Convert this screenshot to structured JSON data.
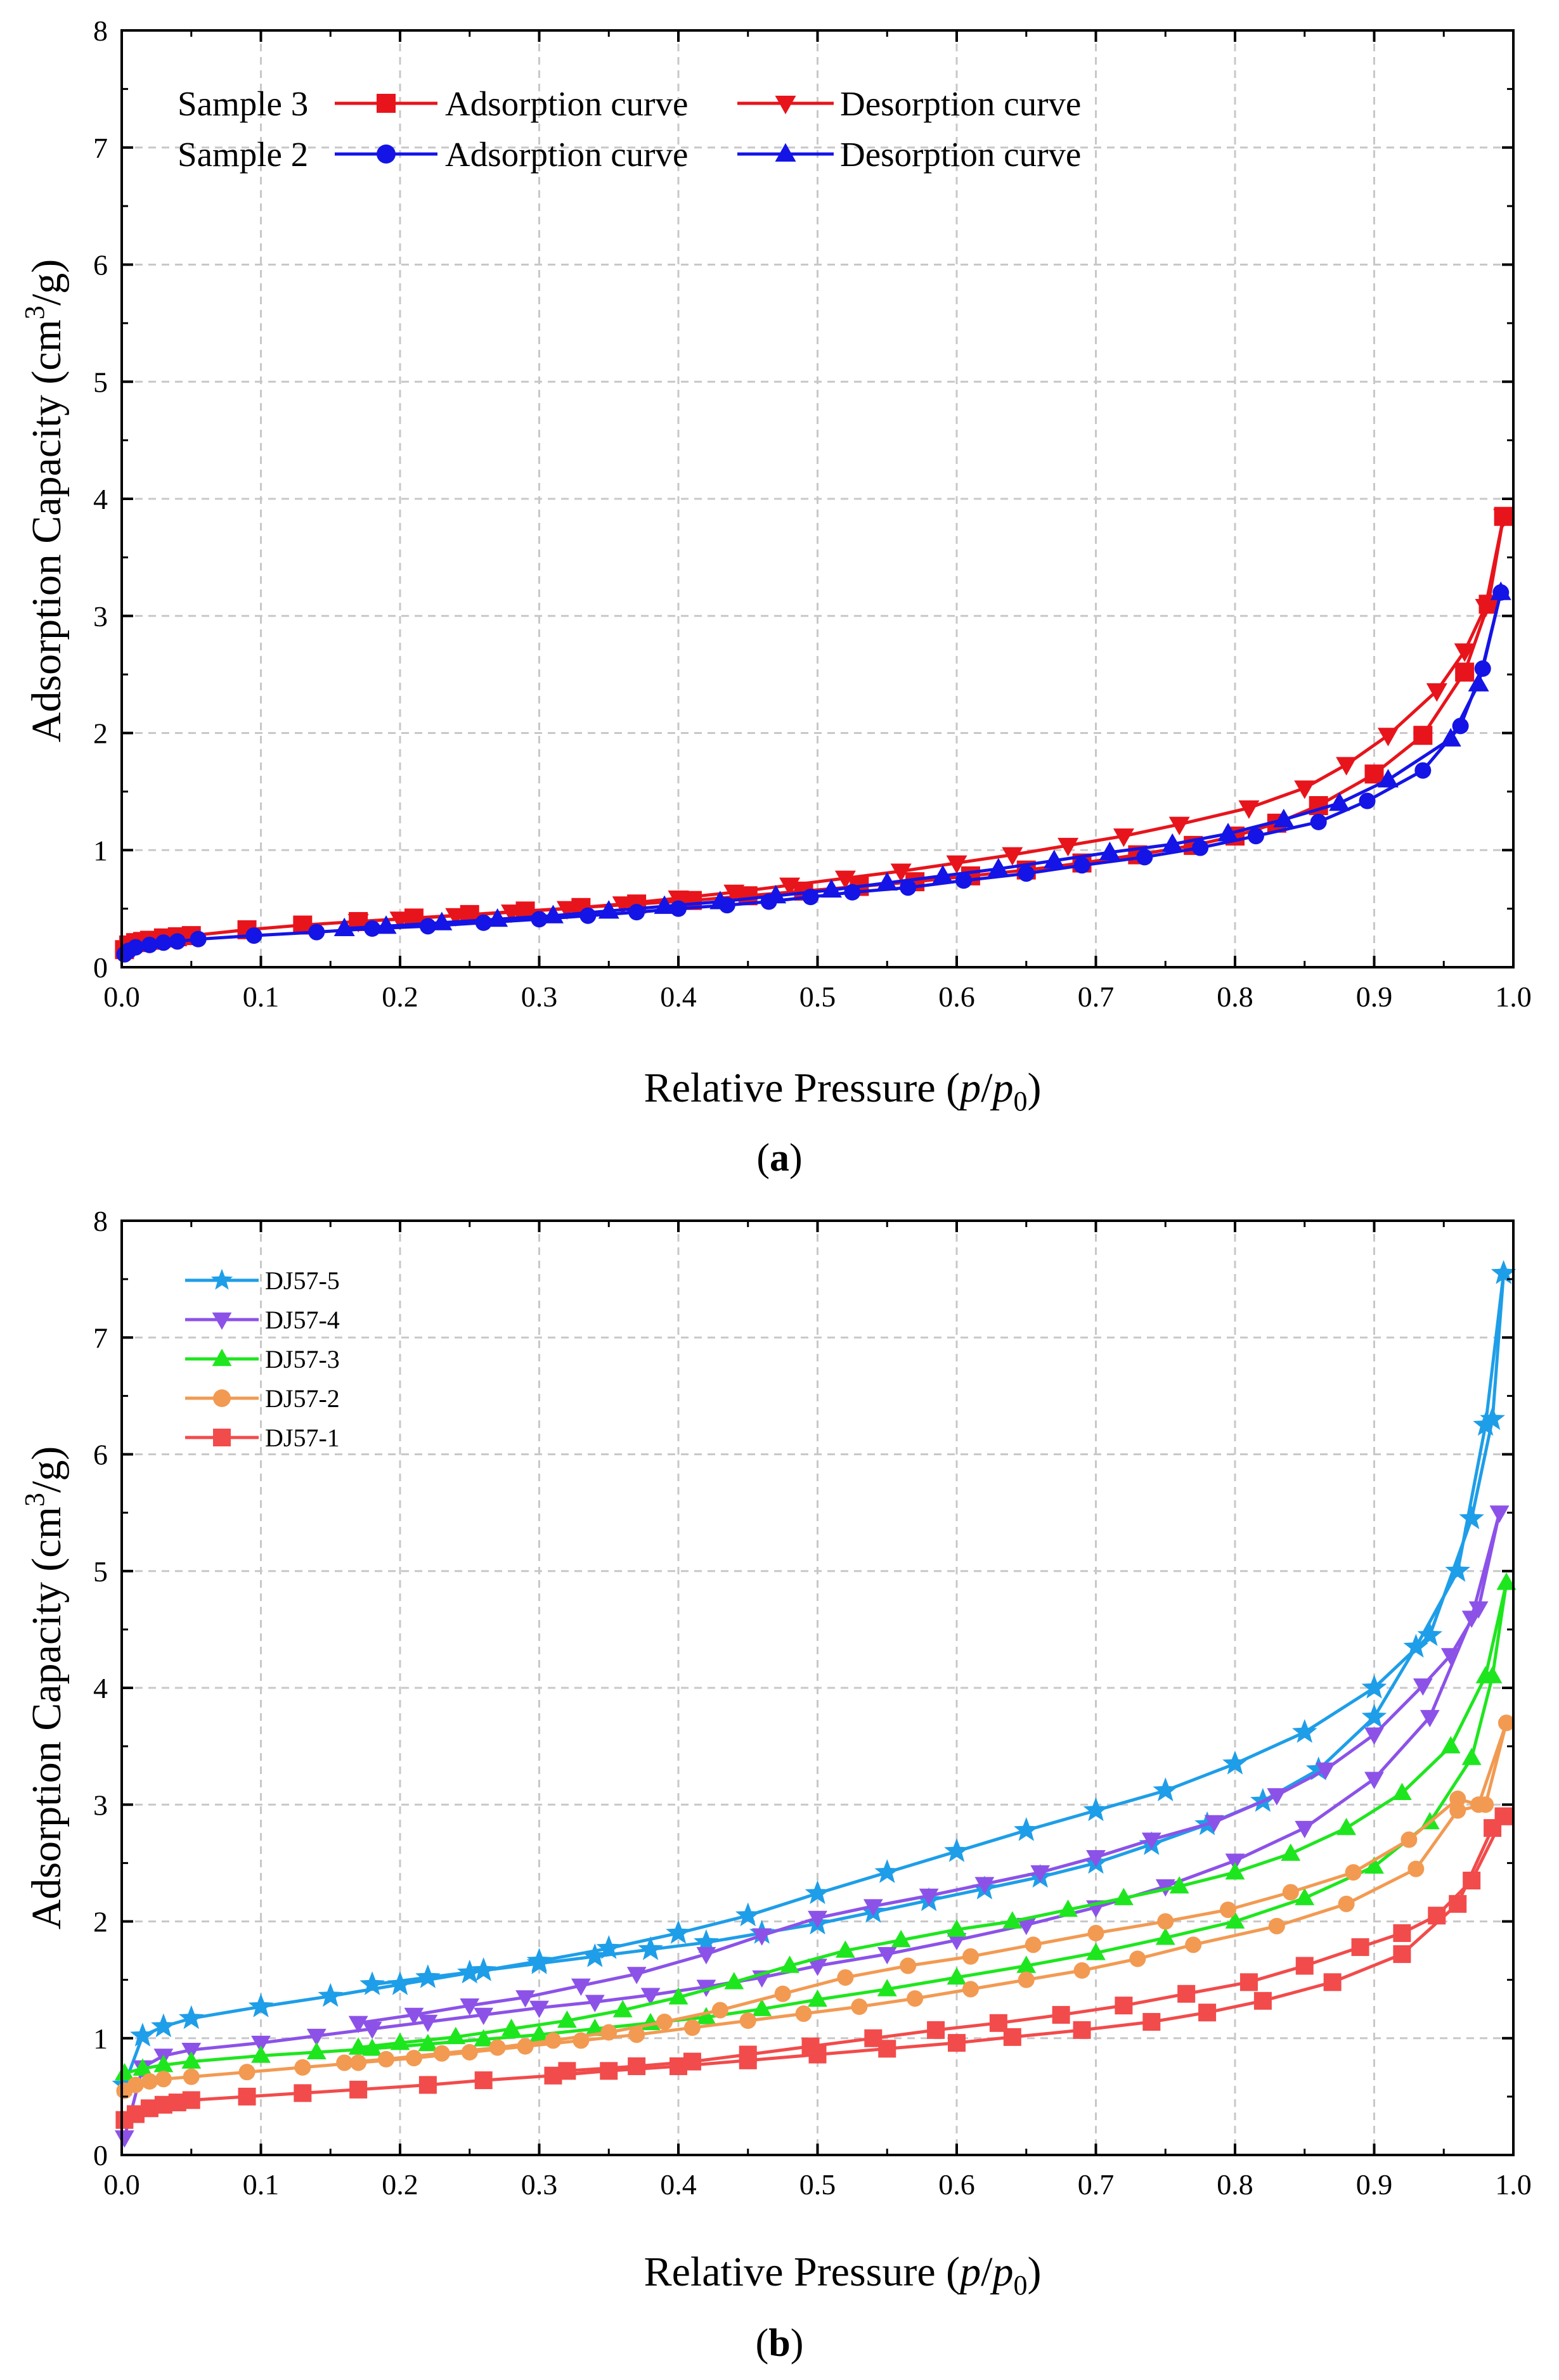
{
  "chart_data": [
    {
      "type": "line",
      "caption": "a",
      "xlabel_main": "Relative Pressure (",
      "xlabel_italic_1": "p",
      "xlabel_slash": "/",
      "xlabel_italic_2": "p",
      "xlabel_sub": "0",
      "xlabel_close": ")",
      "ylabel_main": "Adsorption Capacity (cm",
      "ylabel_sup": "3",
      "ylabel_close": "/g)",
      "xlim": [
        0,
        1
      ],
      "ylim": [
        0,
        8
      ],
      "xticks": [
        "0.0",
        "0.1",
        "0.2",
        "0.3",
        "0.4",
        "0.5",
        "0.6",
        "0.7",
        "0.8",
        "0.9",
        "1.0"
      ],
      "yticks": [
        "0",
        "1",
        "2",
        "3",
        "4",
        "5",
        "6",
        "7",
        "8"
      ],
      "grid": true,
      "legend_position": "top-left",
      "legend_groups": [
        {
          "sample": "Sample 3",
          "adsorption_label": "Adsorption curve",
          "desorption_label": "Desorption curve"
        },
        {
          "sample": "Sample 2",
          "adsorption_label": "Adsorption curve",
          "desorption_label": "Desorption curve"
        }
      ],
      "series": [
        {
          "name": "Sample 3 Adsorption curve",
          "color": "#e8141b",
          "marker": "square",
          "x": [
            0.002,
            0.005,
            0.01,
            0.015,
            0.02,
            0.03,
            0.04,
            0.05,
            0.09,
            0.13,
            0.17,
            0.21,
            0.25,
            0.29,
            0.33,
            0.37,
            0.41,
            0.45,
            0.49,
            0.53,
            0.57,
            0.61,
            0.65,
            0.69,
            0.73,
            0.77,
            0.8,
            0.83,
            0.86,
            0.9,
            0.935,
            0.965,
            0.982,
            0.993
          ],
          "y": [
            0.15,
            0.19,
            0.21,
            0.22,
            0.23,
            0.25,
            0.26,
            0.27,
            0.32,
            0.36,
            0.39,
            0.42,
            0.45,
            0.48,
            0.51,
            0.54,
            0.57,
            0.61,
            0.65,
            0.69,
            0.73,
            0.78,
            0.83,
            0.89,
            0.96,
            1.04,
            1.12,
            1.23,
            1.38,
            1.65,
            1.98,
            2.52,
            3.1,
            3.85
          ]
        },
        {
          "name": "Sample 3 Desorption curve",
          "color": "#e8141b",
          "marker": "triangle-down",
          "x": [
            0.993,
            0.98,
            0.965,
            0.945,
            0.91,
            0.88,
            0.85,
            0.81,
            0.76,
            0.72,
            0.68,
            0.64,
            0.6,
            0.56,
            0.52,
            0.48,
            0.44,
            0.4,
            0.36,
            0.32,
            0.28,
            0.24,
            0.2,
            0.17
          ],
          "y": [
            3.85,
            3.08,
            2.7,
            2.36,
            1.98,
            1.73,
            1.53,
            1.36,
            1.22,
            1.12,
            1.04,
            0.96,
            0.89,
            0.82,
            0.76,
            0.7,
            0.64,
            0.59,
            0.54,
            0.5,
            0.47,
            0.44,
            0.41,
            0.39
          ]
        },
        {
          "name": "Sample 2 Adsorption curve",
          "color": "#1414e6",
          "marker": "circle",
          "x": [
            0.002,
            0.005,
            0.01,
            0.02,
            0.03,
            0.04,
            0.055,
            0.095,
            0.14,
            0.18,
            0.22,
            0.26,
            0.3,
            0.335,
            0.37,
            0.4,
            0.435,
            0.465,
            0.495,
            0.525,
            0.565,
            0.605,
            0.65,
            0.69,
            0.735,
            0.775,
            0.815,
            0.86,
            0.895,
            0.935,
            0.962,
            0.978,
            0.991
          ],
          "y": [
            0.11,
            0.14,
            0.17,
            0.19,
            0.21,
            0.22,
            0.24,
            0.27,
            0.3,
            0.33,
            0.35,
            0.38,
            0.41,
            0.44,
            0.47,
            0.5,
            0.53,
            0.56,
            0.6,
            0.64,
            0.68,
            0.74,
            0.8,
            0.87,
            0.94,
            1.02,
            1.12,
            1.24,
            1.42,
            1.68,
            2.06,
            2.55,
            3.2
          ]
        },
        {
          "name": "Sample 2 Desorption curve",
          "color": "#1414e6",
          "marker": "triangle-up",
          "x": [
            0.991,
            0.975,
            0.955,
            0.91,
            0.875,
            0.835,
            0.795,
            0.755,
            0.71,
            0.67,
            0.63,
            0.59,
            0.55,
            0.51,
            0.47,
            0.43,
            0.39,
            0.35,
            0.31,
            0.27,
            0.23,
            0.19,
            0.16
          ],
          "y": [
            3.2,
            2.42,
            1.95,
            1.6,
            1.4,
            1.26,
            1.14,
            1.05,
            0.98,
            0.91,
            0.84,
            0.78,
            0.72,
            0.66,
            0.61,
            0.56,
            0.52,
            0.48,
            0.44,
            0.41,
            0.38,
            0.35,
            0.33
          ]
        }
      ]
    },
    {
      "type": "line",
      "caption": "b",
      "xlabel_main": "Relative Pressure (",
      "xlabel_italic_1": "p",
      "xlabel_slash": "/",
      "xlabel_italic_2": "p",
      "xlabel_sub": "0",
      "xlabel_close": ")",
      "ylabel_main": "Adsorption Capacity (cm",
      "ylabel_sup": "3",
      "ylabel_close": "/g)",
      "xlim": [
        0,
        1
      ],
      "ylim": [
        0,
        8
      ],
      "xticks": [
        "0.0",
        "0.1",
        "0.2",
        "0.3",
        "0.4",
        "0.5",
        "0.6",
        "0.7",
        "0.8",
        "0.9",
        "1.0"
      ],
      "yticks": [
        "0",
        "1",
        "2",
        "3",
        "4",
        "5",
        "6",
        "7",
        "8"
      ],
      "grid": true,
      "legend_position": "top-left",
      "legend_entries": [
        "DJ57-5",
        "DJ57-4",
        "DJ57-3",
        "DJ57-2",
        "DJ57-1"
      ],
      "series": [
        {
          "name": "DJ57-5",
          "color": "#1e9ee8",
          "marker": "star",
          "adsorption": {
            "x": [
              0.002,
              0.015,
              0.03,
              0.05,
              0.1,
              0.15,
              0.2,
              0.25,
              0.3,
              0.35,
              0.4,
              0.45,
              0.5,
              0.55,
              0.6,
              0.65,
              0.7,
              0.75,
              0.8,
              0.85,
              0.9,
              0.94,
              0.97,
              0.985,
              0.993
            ],
            "y": [
              0.6,
              1.02,
              1.1,
              1.17,
              1.27,
              1.36,
              1.46,
              1.56,
              1.66,
              1.77,
              1.9,
              2.05,
              2.24,
              2.42,
              2.6,
              2.78,
              2.95,
              3.12,
              3.35,
              3.62,
              4.0,
              4.45,
              5.45,
              6.3,
              7.55
            ]
          },
          "desorption": {
            "x": [
              0.993,
              0.98,
              0.96,
              0.93,
              0.9,
              0.86,
              0.82,
              0.78,
              0.74,
              0.7,
              0.66,
              0.62,
              0.58,
              0.54,
              0.5,
              0.46,
              0.42,
              0.38,
              0.34,
              0.3,
              0.26,
              0.22,
              0.18
            ],
            "y": [
              7.55,
              6.25,
              5.0,
              4.35,
              3.75,
              3.3,
              3.03,
              2.83,
              2.66,
              2.5,
              2.38,
              2.28,
              2.18,
              2.08,
              1.98,
              1.9,
              1.82,
              1.76,
              1.7,
              1.64,
              1.58,
              1.52,
              1.46
            ]
          }
        },
        {
          "name": "DJ57-4",
          "color": "#8c52e8",
          "marker": "triangle-down",
          "adsorption": {
            "x": [
              0.002,
              0.015,
              0.03,
              0.05,
              0.1,
              0.14,
              0.18,
              0.22,
              0.26,
              0.3,
              0.34,
              0.38,
              0.42,
              0.46,
              0.5,
              0.55,
              0.6,
              0.65,
              0.7,
              0.75,
              0.8,
              0.85,
              0.9,
              0.94,
              0.97,
              0.99
            ],
            "y": [
              0.15,
              0.75,
              0.85,
              0.9,
              0.96,
              1.02,
              1.08,
              1.14,
              1.2,
              1.26,
              1.31,
              1.37,
              1.44,
              1.52,
              1.62,
              1.72,
              1.84,
              1.97,
              2.12,
              2.3,
              2.52,
              2.8,
              3.22,
              3.75,
              4.6,
              5.5
            ]
          },
          "desorption": {
            "x": [
              0.99,
              0.975,
              0.955,
              0.935,
              0.9,
              0.865,
              0.83,
              0.785,
              0.74,
              0.7,
              0.66,
              0.62,
              0.58,
              0.54,
              0.5,
              0.46,
              0.42,
              0.37,
              0.33,
              0.29,
              0.25,
              0.21,
              0.17
            ],
            "y": [
              5.5,
              4.68,
              4.28,
              4.02,
              3.6,
              3.3,
              3.08,
              2.85,
              2.7,
              2.55,
              2.42,
              2.32,
              2.22,
              2.13,
              2.03,
              1.88,
              1.72,
              1.55,
              1.45,
              1.35,
              1.28,
              1.2,
              1.13
            ]
          }
        },
        {
          "name": "DJ57-3",
          "color": "#1ee61e",
          "marker": "triangle-up",
          "adsorption": {
            "x": [
              0.002,
              0.015,
              0.03,
              0.05,
              0.1,
              0.14,
              0.18,
              0.22,
              0.26,
              0.3,
              0.34,
              0.38,
              0.42,
              0.46,
              0.5,
              0.55,
              0.6,
              0.65,
              0.7,
              0.75,
              0.8,
              0.85,
              0.9,
              0.94,
              0.97,
              0.985,
              0.995
            ],
            "y": [
              0.7,
              0.74,
              0.77,
              0.8,
              0.85,
              0.88,
              0.91,
              0.95,
              0.99,
              1.03,
              1.08,
              1.13,
              1.18,
              1.25,
              1.33,
              1.42,
              1.52,
              1.62,
              1.73,
              1.86,
              2.0,
              2.2,
              2.47,
              2.85,
              3.4,
              4.1,
              4.9
            ]
          },
          "desorption": {
            "x": [
              0.995,
              0.98,
              0.955,
              0.92,
              0.88,
              0.84,
              0.8,
              0.76,
              0.72,
              0.68,
              0.64,
              0.6,
              0.56,
              0.52,
              0.48,
              0.44,
              0.4,
              0.36,
              0.32,
              0.28,
              0.24,
              0.2,
              0.17
            ],
            "y": [
              4.9,
              4.1,
              3.5,
              3.1,
              2.8,
              2.58,
              2.42,
              2.3,
              2.2,
              2.1,
              2.0,
              1.93,
              1.84,
              1.75,
              1.62,
              1.48,
              1.35,
              1.24,
              1.15,
              1.08,
              1.01,
              0.96,
              0.92
            ]
          }
        },
        {
          "name": "DJ57-2",
          "color": "#f29a52",
          "marker": "circle",
          "adsorption": {
            "x": [
              0.002,
              0.01,
              0.02,
              0.03,
              0.05,
              0.09,
              0.13,
              0.17,
              0.21,
              0.25,
              0.29,
              0.33,
              0.37,
              0.41,
              0.45,
              0.49,
              0.53,
              0.57,
              0.61,
              0.65,
              0.69,
              0.73,
              0.77,
              0.83,
              0.88,
              0.93,
              0.96,
              0.98,
              0.995
            ],
            "y": [
              0.55,
              0.6,
              0.63,
              0.65,
              0.67,
              0.71,
              0.75,
              0.79,
              0.83,
              0.88,
              0.93,
              0.98,
              1.03,
              1.09,
              1.15,
              1.21,
              1.27,
              1.34,
              1.42,
              1.5,
              1.58,
              1.68,
              1.8,
              1.96,
              2.15,
              2.45,
              2.95,
              3.0,
              3.7
            ]
          },
          "desorption": {
            "x": [
              0.995,
              0.975,
              0.96,
              0.925,
              0.885,
              0.84,
              0.795,
              0.75,
              0.7,
              0.655,
              0.61,
              0.565,
              0.52,
              0.475,
              0.43,
              0.39,
              0.35,
              0.31,
              0.27,
              0.23,
              0.19,
              0.16
            ],
            "y": [
              3.7,
              3.0,
              3.05,
              2.7,
              2.42,
              2.25,
              2.1,
              2.0,
              1.9,
              1.8,
              1.7,
              1.62,
              1.52,
              1.38,
              1.24,
              1.14,
              1.05,
              0.98,
              0.92,
              0.87,
              0.82,
              0.79
            ]
          }
        },
        {
          "name": "DJ57-1",
          "color": "#f24b4b",
          "marker": "square",
          "adsorption": {
            "x": [
              0.002,
              0.01,
              0.02,
              0.03,
              0.04,
              0.05,
              0.09,
              0.13,
              0.17,
              0.22,
              0.26,
              0.31,
              0.35,
              0.4,
              0.45,
              0.5,
              0.55,
              0.6,
              0.64,
              0.69,
              0.74,
              0.78,
              0.82,
              0.87,
              0.92,
              0.96,
              0.985,
              0.993
            ],
            "y": [
              0.3,
              0.35,
              0.4,
              0.43,
              0.45,
              0.47,
              0.5,
              0.53,
              0.56,
              0.6,
              0.64,
              0.68,
              0.72,
              0.76,
              0.81,
              0.86,
              0.91,
              0.96,
              1.01,
              1.07,
              1.14,
              1.22,
              1.32,
              1.48,
              1.72,
              2.15,
              2.8,
              2.9
            ]
          },
          "desorption": {
            "x": [
              0.993,
              0.97,
              0.945,
              0.92,
              0.89,
              0.85,
              0.81,
              0.765,
              0.72,
              0.675,
              0.63,
              0.585,
              0.54,
              0.495,
              0.45,
              0.41,
              0.37,
              0.32
            ],
            "y": [
              2.9,
              2.35,
              2.05,
              1.9,
              1.78,
              1.62,
              1.48,
              1.38,
              1.28,
              1.2,
              1.13,
              1.07,
              1.0,
              0.93,
              0.86,
              0.8,
              0.76,
              0.72
            ]
          }
        }
      ]
    }
  ]
}
